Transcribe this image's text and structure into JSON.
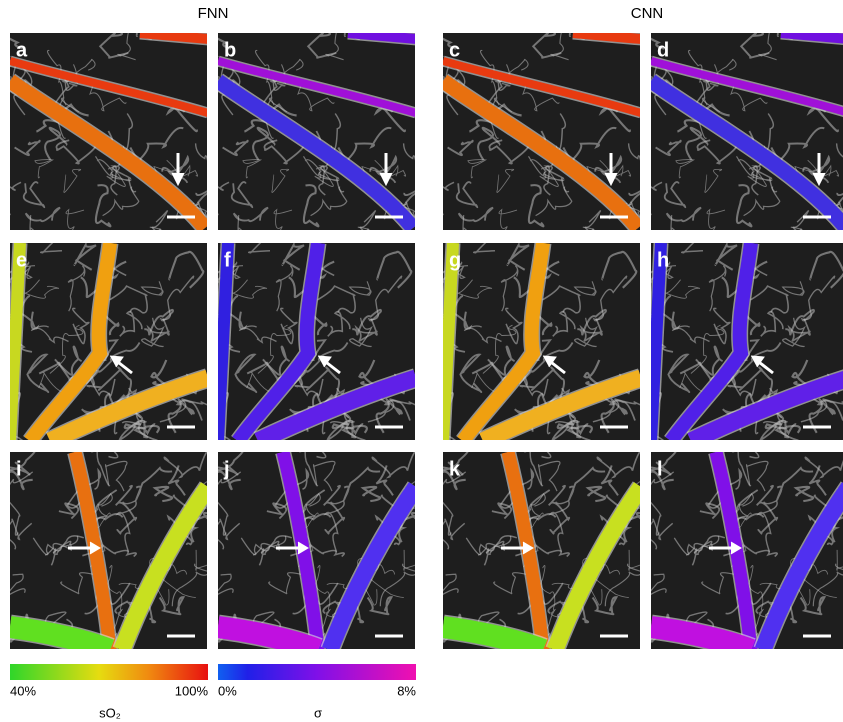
{
  "figure": {
    "column_headers": [
      "FNN",
      "CNN"
    ],
    "panels": [
      {
        "letter": "a"
      },
      {
        "letter": "b"
      },
      {
        "letter": "c"
      },
      {
        "letter": "d"
      },
      {
        "letter": "e"
      },
      {
        "letter": "f"
      },
      {
        "letter": "g"
      },
      {
        "letter": "h"
      },
      {
        "letter": "i"
      },
      {
        "letter": "j"
      },
      {
        "letter": "k"
      },
      {
        "letter": "l"
      }
    ],
    "colorbars": [
      {
        "min_label": "40%",
        "max_label": "100%",
        "title": "sO₂"
      },
      {
        "min_label": "0%",
        "max_label": "8%",
        "title": "σ"
      }
    ]
  }
}
